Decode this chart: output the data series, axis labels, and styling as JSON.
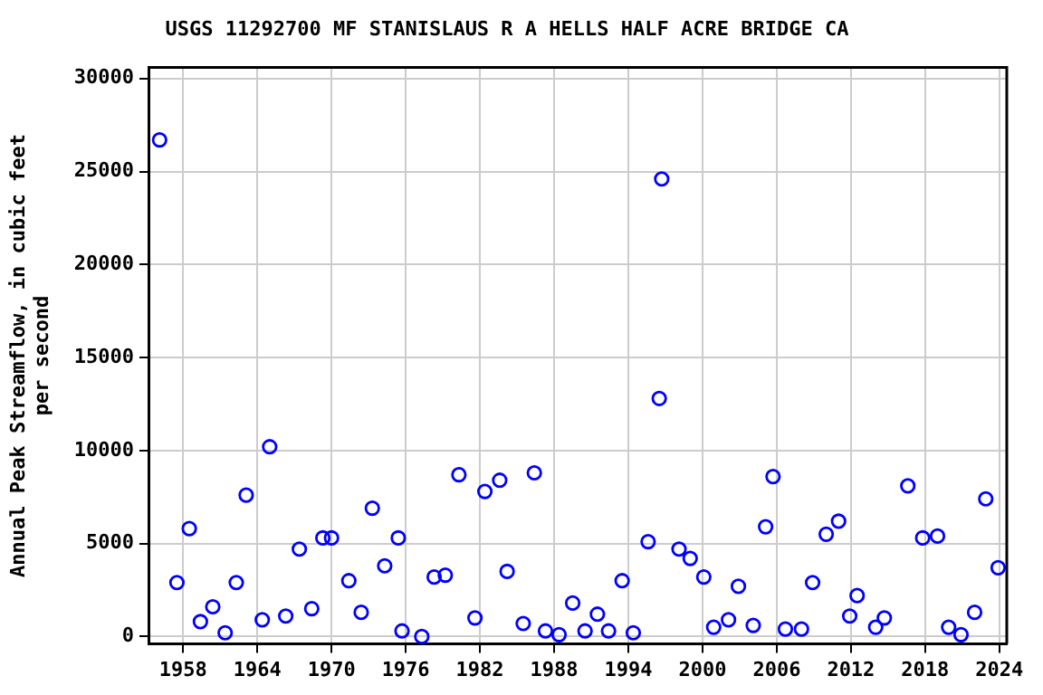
{
  "chart_data": {
    "type": "scatter",
    "title": "USGS 11292700 MF STANISLAUS R A HELLS HALF ACRE BRIDGE CA",
    "ylabel": "Annual Peak Streamflow, in cubic feet per second",
    "marker": "circle",
    "grid": true,
    "xlim": [
      1955.2,
      2024.6
    ],
    "xticks": [
      1958,
      1964,
      1970,
      1976,
      1982,
      1988,
      1994,
      2000,
      2006,
      2012,
      2018,
      2024
    ],
    "ylim": [
      -400,
      30600
    ],
    "yticks": [
      0,
      5000,
      10000,
      15000,
      20000,
      25000,
      30000
    ],
    "series": [
      {
        "color": "#0000ff",
        "x": [
          1956.1,
          1957.5,
          1958.5,
          1959.4,
          1960.4,
          1961.4,
          1962.3,
          1963.1,
          1964.4,
          1965.0,
          1966.3,
          1967.4,
          1968.4,
          1969.3,
          1970.0,
          1971.4,
          1972.4,
          1973.3,
          1974.3,
          1975.4,
          1975.7,
          1977.3,
          1978.3,
          1979.2,
          1980.3,
          1981.6,
          1982.4,
          1983.6,
          1984.2,
          1985.5,
          1986.4,
          1987.3,
          1988.4,
          1989.5,
          1990.5,
          1991.5,
          1992.4,
          1993.5,
          1994.4,
          1995.6,
          1996.5,
          1996.7,
          1998.1,
          1999.0,
          2000.1,
          2000.9,
          2002.1,
          2002.9,
          2004.1,
          2005.1,
          2005.7,
          2006.7,
          2008.0,
          2008.9,
          2010.0,
          2011.0,
          2011.9,
          2012.5,
          2014.0,
          2014.7,
          2016.6,
          2017.8,
          2019.0,
          2019.9,
          2020.9,
          2022.0,
          2022.9,
          2023.9
        ],
        "values": [
          26700,
          2900,
          5800,
          800,
          1600,
          200,
          2900,
          7600,
          900,
          10200,
          1100,
          4700,
          1500,
          5300,
          5300,
          3000,
          1300,
          6900,
          3800,
          5300,
          300,
          0,
          3200,
          3300,
          8700,
          1000,
          7800,
          8400,
          3500,
          700,
          8800,
          300,
          100,
          1800,
          300,
          1200,
          300,
          3000,
          200,
          5100,
          12800,
          24600,
          4700,
          4200,
          3200,
          500,
          900,
          2700,
          600,
          5900,
          8600,
          400,
          400,
          2900,
          5500,
          6200,
          1100,
          2200,
          500,
          1000,
          8100,
          5300,
          5400,
          500,
          100,
          1300,
          7400,
          3700
        ]
      }
    ]
  }
}
